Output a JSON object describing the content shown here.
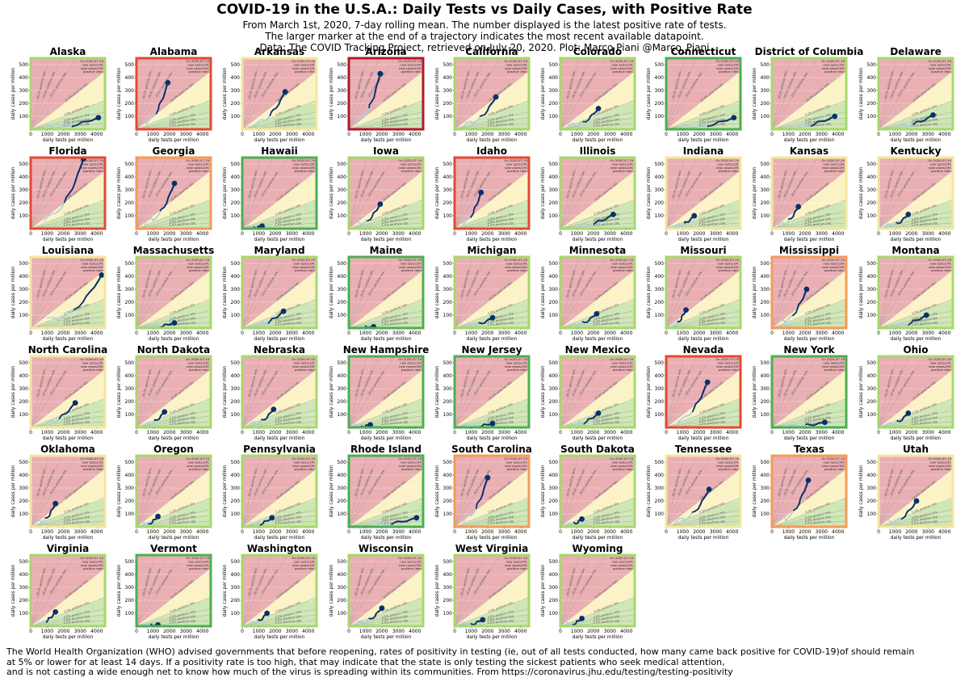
{
  "title": "COVID-19 in the U.S.A.: Daily Tests vs Daily Cases, with Positive Rate",
  "subtitle_lines": [
    "From March 1st, 2020, 7-day rolling mean. The number displayed is the latest positive rate of tests.",
    "The larger marker at the end of a trajectory indicates the most recent available datapoint.",
    "Data: The COVID Tracking Project, retrieved on July 20, 2020. Plot: Marco Piani @Marco_Piani"
  ],
  "footer_lines": [
    "The World Health Organization (WHO) advised governments that before reopening, rates of positivity in testing (ie, out of all tests conducted, how many came back positive for COVID-19)of should remain",
    "at 5% or lower for at least 14 days. If a positivity rate is too high, that may indicate that the state is only testing the sickest patients who seek medical attention,",
    "and is not casting a wide enough net to know how much of the virus is spreading within its communities. From https://coronavirus.jhu.edu/testing/testing-positivity"
  ],
  "chart_data": {
    "type": "line",
    "xlabel": "daily tests per million",
    "ylabel": "daily cases per million",
    "xlim": [
      0,
      4500
    ],
    "ylim": [
      0,
      550
    ],
    "x_ticks": [
      0,
      1000,
      2000,
      3000,
      4000
    ],
    "y_ticks": [
      100,
      200,
      300,
      400,
      500
    ],
    "rate_lines": [
      "50.0% positive rate",
      "30.0% positive rate",
      "20.0% positive rate",
      "10.0% positive rate",
      "5.0% positive rate",
      "3.0% positive rate",
      "2.0% positive rate",
      "1.0% positive rate"
    ],
    "info_labels": [
      "On 2020-07-19",
      "new tests/1M:",
      "new cases/1M:",
      "positive rate:"
    ],
    "colors": {
      "zone_red": "#e8a7b0",
      "zone_yellow": "#fbf3c6",
      "zone_green": "#cfe6b5",
      "border_green": "#4caf50",
      "border_lightgreen": "#a6d96a",
      "border_yellow": "#f3e79b",
      "border_orange": "#f59b57",
      "border_red": "#e34a33",
      "border_darkred": "#b2182b",
      "trajectory_light": "#a6cee3",
      "trajectory_dark": "#08306b"
    },
    "states": [
      {
        "name": "Alaska",
        "border": "border_lightgreen",
        "big_number": "",
        "last": [
          4100,
          90
        ]
      },
      {
        "name": "Alabama",
        "border": "border_red",
        "big_number": "",
        "last": [
          1900,
          360
        ]
      },
      {
        "name": "Arkansas",
        "border": "border_yellow",
        "big_number": "",
        "last": [
          2600,
          290
        ]
      },
      {
        "name": "Arizona",
        "border": "border_darkred",
        "big_number": "",
        "last": [
          1900,
          430
        ]
      },
      {
        "name": "California",
        "border": "border_lightgreen",
        "big_number": "",
        "last": [
          2500,
          250
        ]
      },
      {
        "name": "Colorado",
        "border": "border_lightgreen",
        "big_number": "",
        "last": [
          2300,
          160
        ]
      },
      {
        "name": "Connecticut",
        "border": "border_green",
        "big_number": "",
        "last": [
          4100,
          90
        ]
      },
      {
        "name": "District of Columbia",
        "border": "border_lightgreen",
        "big_number": "",
        "last": [
          3800,
          100
        ]
      },
      {
        "name": "Delaware",
        "border": "border_lightgreen",
        "big_number": "",
        "last": [
          3300,
          110
        ]
      },
      {
        "name": "Florida",
        "border": "border_red",
        "big_number": "",
        "last": [
          3200,
          540
        ]
      },
      {
        "name": "Georgia",
        "border": "border_orange",
        "big_number": "",
        "last": [
          2300,
          350
        ]
      },
      {
        "name": "Hawaii",
        "border": "border_green",
        "big_number": "",
        "last": [
          1200,
          20
        ]
      },
      {
        "name": "Iowa",
        "border": "border_lightgreen",
        "big_number": "",
        "last": [
          1900,
          190
        ]
      },
      {
        "name": "Idaho",
        "border": "border_red",
        "big_number": "",
        "last": [
          1600,
          280
        ]
      },
      {
        "name": "Illinois",
        "border": "border_lightgreen",
        "big_number": "",
        "last": [
          3200,
          110
        ]
      },
      {
        "name": "Indiana",
        "border": "border_yellow",
        "big_number": "",
        "last": [
          1700,
          100
        ]
      },
      {
        "name": "Kansas",
        "border": "border_yellow",
        "big_number": "",
        "last": [
          1600,
          170
        ]
      },
      {
        "name": "Kentucky",
        "border": "border_yellow",
        "big_number": "",
        "last": [
          1800,
          110
        ]
      },
      {
        "name": "Louisiana",
        "border": "border_yellow",
        "big_number": "",
        "last": [
          4300,
          410
        ]
      },
      {
        "name": "Massachusetts",
        "border": "border_lightgreen",
        "big_number": "",
        "last": [
          2300,
          40
        ]
      },
      {
        "name": "Maryland",
        "border": "border_lightgreen",
        "big_number": "",
        "last": [
          2500,
          130
        ]
      },
      {
        "name": "Maine",
        "border": "border_green",
        "big_number": "",
        "last": [
          1500,
          10
        ]
      },
      {
        "name": "Michigan",
        "border": "border_lightgreen",
        "big_number": "",
        "last": [
          2300,
          80
        ]
      },
      {
        "name": "Minnesota",
        "border": "border_lightgreen",
        "big_number": "",
        "last": [
          2200,
          110
        ]
      },
      {
        "name": "Missouri",
        "border": "border_lightgreen",
        "big_number": "",
        "last": [
          1200,
          140
        ]
      },
      {
        "name": "Mississippi",
        "border": "border_orange",
        "big_number": "",
        "last": [
          2100,
          300
        ]
      },
      {
        "name": "Montana",
        "border": "border_lightgreen",
        "big_number": "",
        "last": [
          2900,
          100
        ]
      },
      {
        "name": "North Carolina",
        "border": "border_yellow",
        "big_number": "",
        "last": [
          2700,
          190
        ]
      },
      {
        "name": "North Dakota",
        "border": "border_lightgreen",
        "big_number": "",
        "last": [
          1700,
          120
        ]
      },
      {
        "name": "Nebraska",
        "border": "border_lightgreen",
        "big_number": "",
        "last": [
          1900,
          140
        ]
      },
      {
        "name": "New Hampshire",
        "border": "border_green",
        "big_number": "",
        "last": [
          1300,
          20
        ]
      },
      {
        "name": "New Jersey",
        "border": "border_green",
        "big_number": "",
        "last": [
          2300,
          30
        ]
      },
      {
        "name": "New Mexico",
        "border": "border_lightgreen",
        "big_number": "",
        "last": [
          2300,
          110
        ]
      },
      {
        "name": "Nevada",
        "border": "border_red",
        "big_number": "",
        "last": [
          2500,
          350
        ]
      },
      {
        "name": "New York",
        "border": "border_green",
        "big_number": "",
        "last": [
          3200,
          40
        ]
      },
      {
        "name": "Ohio",
        "border": "border_lightgreen",
        "big_number": "",
        "last": [
          1800,
          110
        ]
      },
      {
        "name": "Oklahoma",
        "border": "border_yellow",
        "big_number": "",
        "last": [
          1500,
          180
        ]
      },
      {
        "name": "Oregon",
        "border": "border_lightgreen",
        "big_number": "",
        "last": [
          1300,
          80
        ]
      },
      {
        "name": "Pennsylvania",
        "border": "border_lightgreen",
        "big_number": "",
        "last": [
          1800,
          70
        ]
      },
      {
        "name": "Rhode Island",
        "border": "border_green",
        "big_number": "",
        "last": [
          4100,
          70
        ]
      },
      {
        "name": "South Carolina",
        "border": "border_orange",
        "big_number": "",
        "last": [
          2000,
          380
        ]
      },
      {
        "name": "South Dakota",
        "border": "border_lightgreen",
        "big_number": "",
        "last": [
          1300,
          60
        ]
      },
      {
        "name": "Tennessee",
        "border": "border_yellow",
        "big_number": "",
        "last": [
          2600,
          290
        ]
      },
      {
        "name": "Texas",
        "border": "border_orange",
        "big_number": "",
        "last": [
          2200,
          360
        ]
      },
      {
        "name": "Utah",
        "border": "border_yellow",
        "big_number": "",
        "last": [
          2300,
          200
        ]
      },
      {
        "name": "Virginia",
        "border": "border_lightgreen",
        "big_number": "",
        "last": [
          1500,
          110
        ]
      },
      {
        "name": "Vermont",
        "border": "border_green",
        "big_number": "",
        "last": [
          1300,
          10
        ]
      },
      {
        "name": "Washington",
        "border": "border_lightgreen",
        "big_number": "",
        "last": [
          1500,
          100
        ]
      },
      {
        "name": "Wisconsin",
        "border": "border_lightgreen",
        "big_number": "",
        "last": [
          2000,
          140
        ]
      },
      {
        "name": "West Virginia",
        "border": "border_lightgreen",
        "big_number": "",
        "last": [
          1700,
          50
        ]
      },
      {
        "name": "Wyoming",
        "border": "border_lightgreen",
        "big_number": "",
        "last": [
          1300,
          60
        ]
      }
    ]
  }
}
